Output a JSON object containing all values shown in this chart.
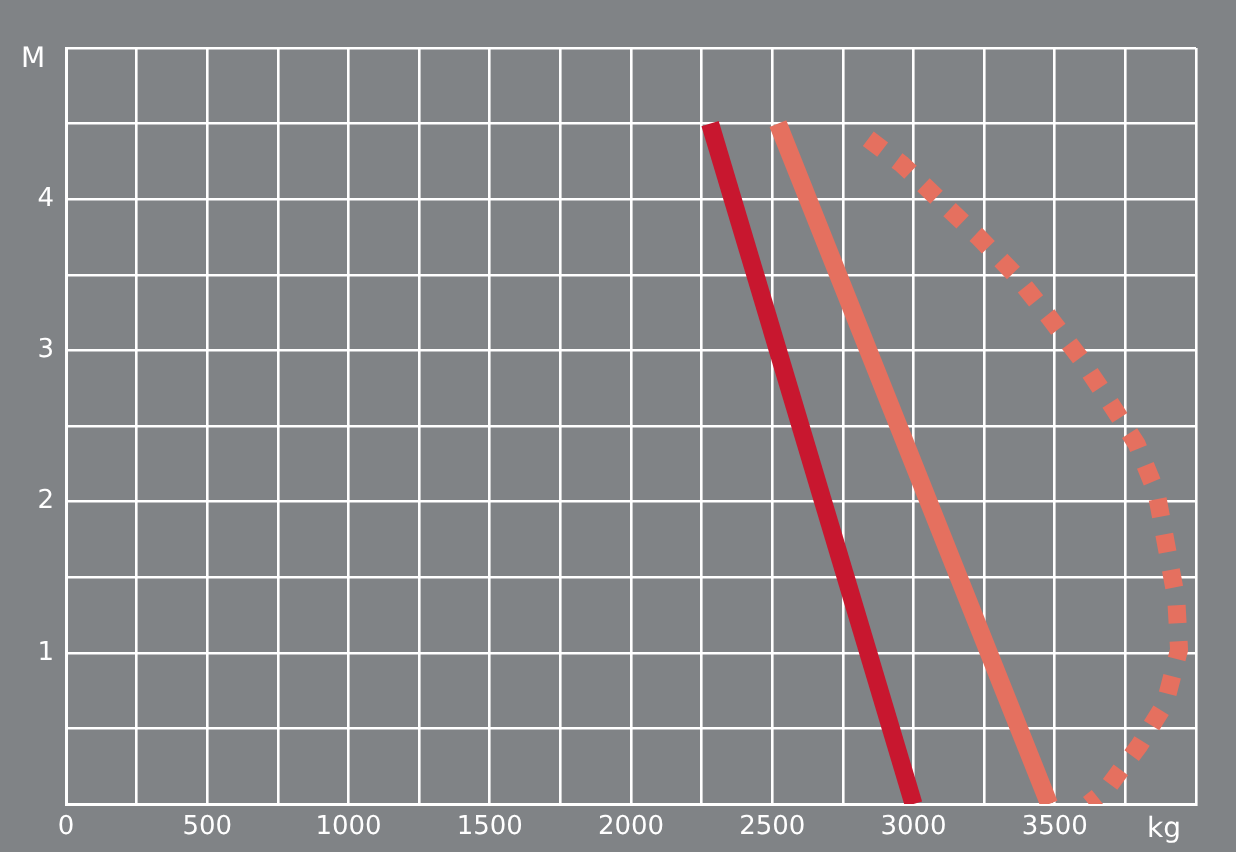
{
  "chart_data": {
    "type": "line",
    "xlabel": "kg",
    "ylabel": "M",
    "xlim": [
      0,
      4000
    ],
    "ylim": [
      0,
      5
    ],
    "xticks": [
      0,
      {
        "value": 250,
        "label": null
      },
      500,
      {
        "value": 750,
        "label": null
      },
      1000,
      {
        "value": 1250,
        "label": null
      },
      1500,
      {
        "value": 1750,
        "label": null
      },
      2000,
      {
        "value": 2250,
        "label": null
      },
      2500,
      {
        "value": 2750,
        "label": null
      },
      3000,
      {
        "value": 3250,
        "label": null
      },
      3500,
      {
        "value": 3750,
        "label": null
      },
      {
        "value": 4000,
        "label": null
      }
    ],
    "yticks": [
      {
        "value": 0,
        "label": null
      },
      {
        "value": 0.5,
        "label": null
      },
      1,
      {
        "value": 1.5,
        "label": null
      },
      2,
      {
        "value": 2.5,
        "label": null
      },
      3,
      {
        "value": 3.5,
        "label": null
      },
      4,
      {
        "value": 4.5,
        "label": null
      },
      {
        "value": 5,
        "label": null
      }
    ],
    "grid": true,
    "legend": false,
    "marker": "none",
    "series": [
      {
        "color": "#c8172f",
        "line_style": "solid",
        "x": [
          2280,
          3000
        ],
        "values": [
          4.5,
          0
        ]
      },
      {
        "color": "#e5705f",
        "line_style": "solid",
        "x": [
          2520,
          3480
        ],
        "values": [
          4.5,
          0
        ]
      },
      {
        "color": "#e5705f",
        "line_style": "dotted",
        "x": [
          2840,
          2960,
          3100,
          3230,
          3360,
          3480,
          3590,
          3690,
          3790,
          3860,
          3930,
          3940,
          3890,
          3800,
          3680,
          3620
        ],
        "values": [
          4.4,
          4.23,
          3.98,
          3.75,
          3.5,
          3.22,
          2.95,
          2.67,
          2.38,
          2.06,
          1.36,
          1.02,
          0.66,
          0.39,
          0.09,
          0
        ]
      }
    ]
  }
}
